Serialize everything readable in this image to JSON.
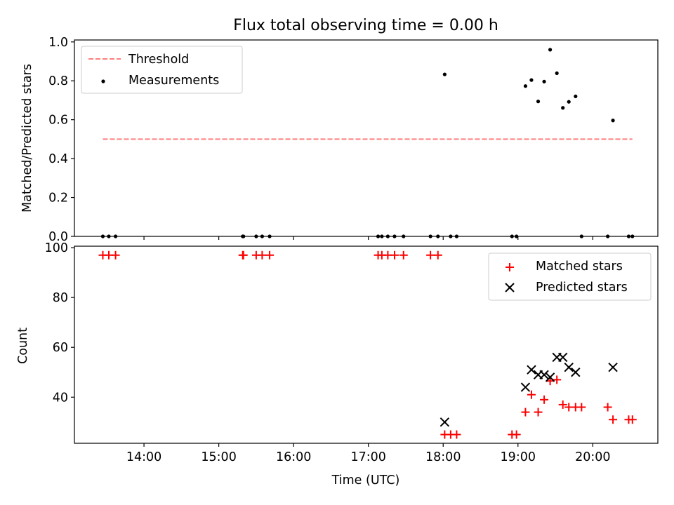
{
  "chart_data": [
    {
      "type": "scatter",
      "title": "Flux total observing time = 0.00 h",
      "ylabel": "Matched/Predicted stars",
      "xlabel": "",
      "xlim": [
        13.07,
        20.87
      ],
      "ylim": [
        0.0,
        1.01
      ],
      "yticks": [
        "0.0",
        "0.2",
        "0.4",
        "0.6",
        "0.8",
        "1.0"
      ],
      "ytick_values": [
        0.0,
        0.2,
        0.4,
        0.6,
        0.8,
        1.0
      ],
      "legend_position": "top-left",
      "legend": [
        "Threshold",
        "Measurements"
      ],
      "series": [
        {
          "name": "Threshold",
          "type": "line",
          "style": "dashed",
          "color": "#ff7f7f",
          "x": [
            13.45,
            20.53
          ],
          "y": [
            0.5,
            0.5
          ]
        },
        {
          "name": "Measurements",
          "type": "scatter",
          "color": "#000000",
          "x": [
            13.45,
            13.53,
            13.62,
            15.32,
            15.33,
            15.5,
            15.58,
            15.68,
            17.13,
            17.18,
            17.26,
            17.35,
            17.47,
            17.83,
            17.93,
            18.02,
            18.1,
            18.18,
            18.92,
            18.98,
            19.1,
            19.18,
            19.27,
            19.35,
            19.43,
            19.52,
            19.6,
            19.68,
            19.77,
            19.85,
            20.2,
            20.27,
            20.48,
            20.53
          ],
          "y": [
            0,
            0,
            0,
            0,
            0,
            0,
            0,
            0,
            0,
            0,
            0,
            0,
            0,
            0,
            0,
            0.833,
            0,
            0,
            0,
            0,
            0.773,
            0.804,
            0.694,
            0.796,
            0.96,
            0.839,
            0.661,
            0.692,
            0.72,
            0,
            0,
            0.596,
            0,
            0
          ]
        }
      ]
    },
    {
      "type": "scatter",
      "title": "",
      "ylabel": "Count",
      "xlabel": "Time (UTC)",
      "xlim": [
        13.07,
        20.87
      ],
      "ylim": [
        21.5,
        100.6
      ],
      "yticks": [
        "40",
        "60",
        "80",
        "100"
      ],
      "ytick_values": [
        40,
        60,
        80,
        100
      ],
      "xticks": [
        "14:00",
        "15:00",
        "16:00",
        "17:00",
        "18:00",
        "19:00",
        "20:00"
      ],
      "xtick_values": [
        14,
        15,
        16,
        17,
        18,
        19,
        20
      ],
      "legend_position": "top-right",
      "legend": [
        "Matched stars",
        "Predicted stars"
      ],
      "series": [
        {
          "name": "Matched stars",
          "marker": "plus",
          "color": "#ff0000",
          "x": [
            13.45,
            13.53,
            13.62,
            15.32,
            15.33,
            15.5,
            15.58,
            15.68,
            17.13,
            17.18,
            17.26,
            17.35,
            17.47,
            17.83,
            17.93,
            18.02,
            18.1,
            18.18,
            18.92,
            18.98,
            19.1,
            19.18,
            19.27,
            19.35,
            19.43,
            19.52,
            19.6,
            19.68,
            19.77,
            19.85,
            20.2,
            20.27,
            20.48,
            20.53
          ],
          "y": [
            97,
            97,
            97,
            97,
            97,
            97,
            97,
            97,
            97,
            97,
            97,
            97,
            97,
            97,
            97,
            25,
            25,
            25,
            25,
            25,
            34,
            41,
            34,
            39,
            46.5,
            47,
            37,
            36,
            36,
            36,
            36,
            31,
            31,
            31
          ]
        },
        {
          "name": "Predicted stars",
          "marker": "x",
          "color": "#000000",
          "x": [
            18.02,
            19.1,
            19.18,
            19.27,
            19.35,
            19.43,
            19.52,
            19.6,
            19.68,
            19.77,
            20.27
          ],
          "y": [
            30,
            44,
            51,
            49,
            49,
            48,
            56,
            56,
            52,
            50,
            52
          ]
        }
      ]
    }
  ]
}
